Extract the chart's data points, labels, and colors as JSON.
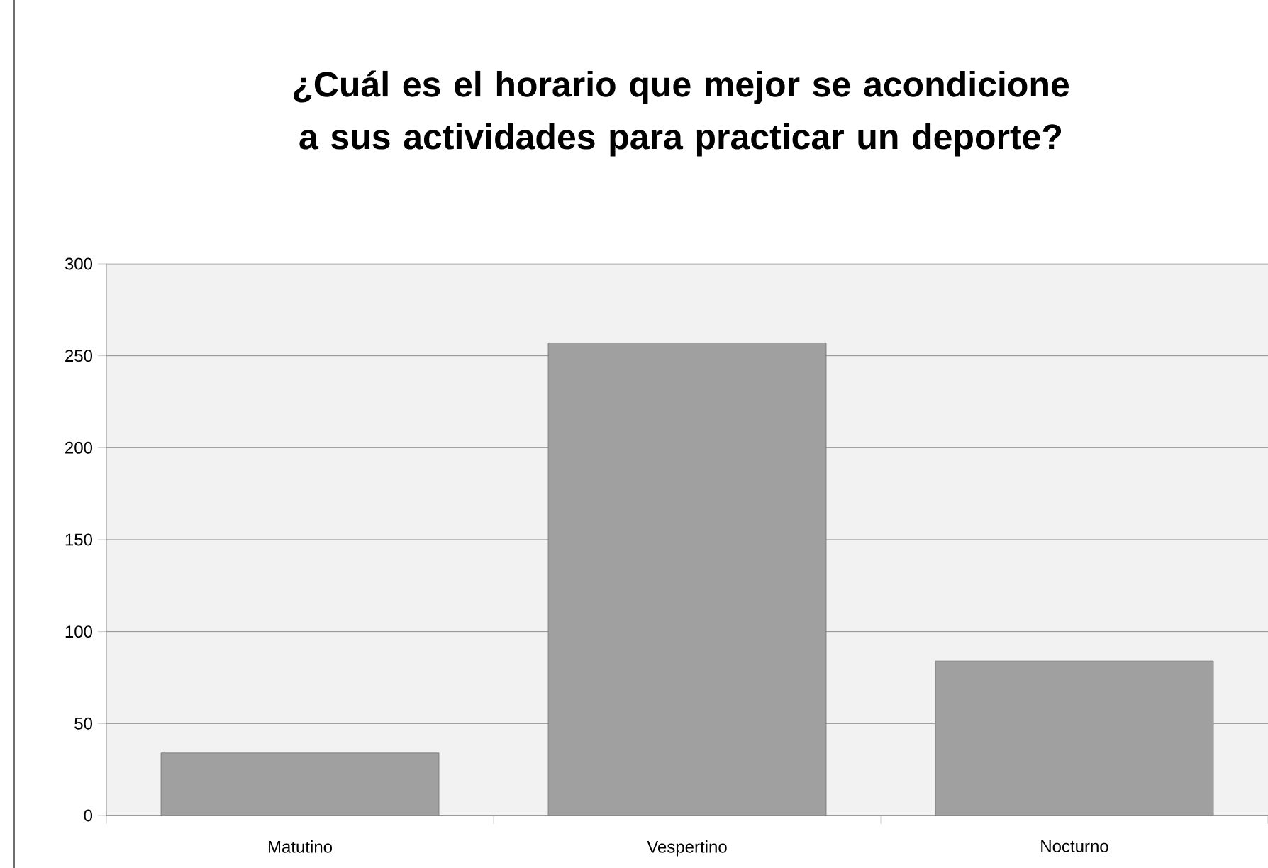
{
  "chart_data": {
    "type": "bar",
    "title": "¿Cuál es el horario que mejor se acondicione a sus actividades para practicar un deporte?",
    "categories": [
      "Matutino",
      "Vespertino",
      "Nocturno"
    ],
    "values": [
      34,
      257,
      84
    ],
    "color": "#a0a0a0",
    "ylim": [
      0,
      300
    ],
    "yticks": [
      0,
      50,
      100,
      150,
      200,
      250,
      300
    ],
    "grid": "y"
  }
}
